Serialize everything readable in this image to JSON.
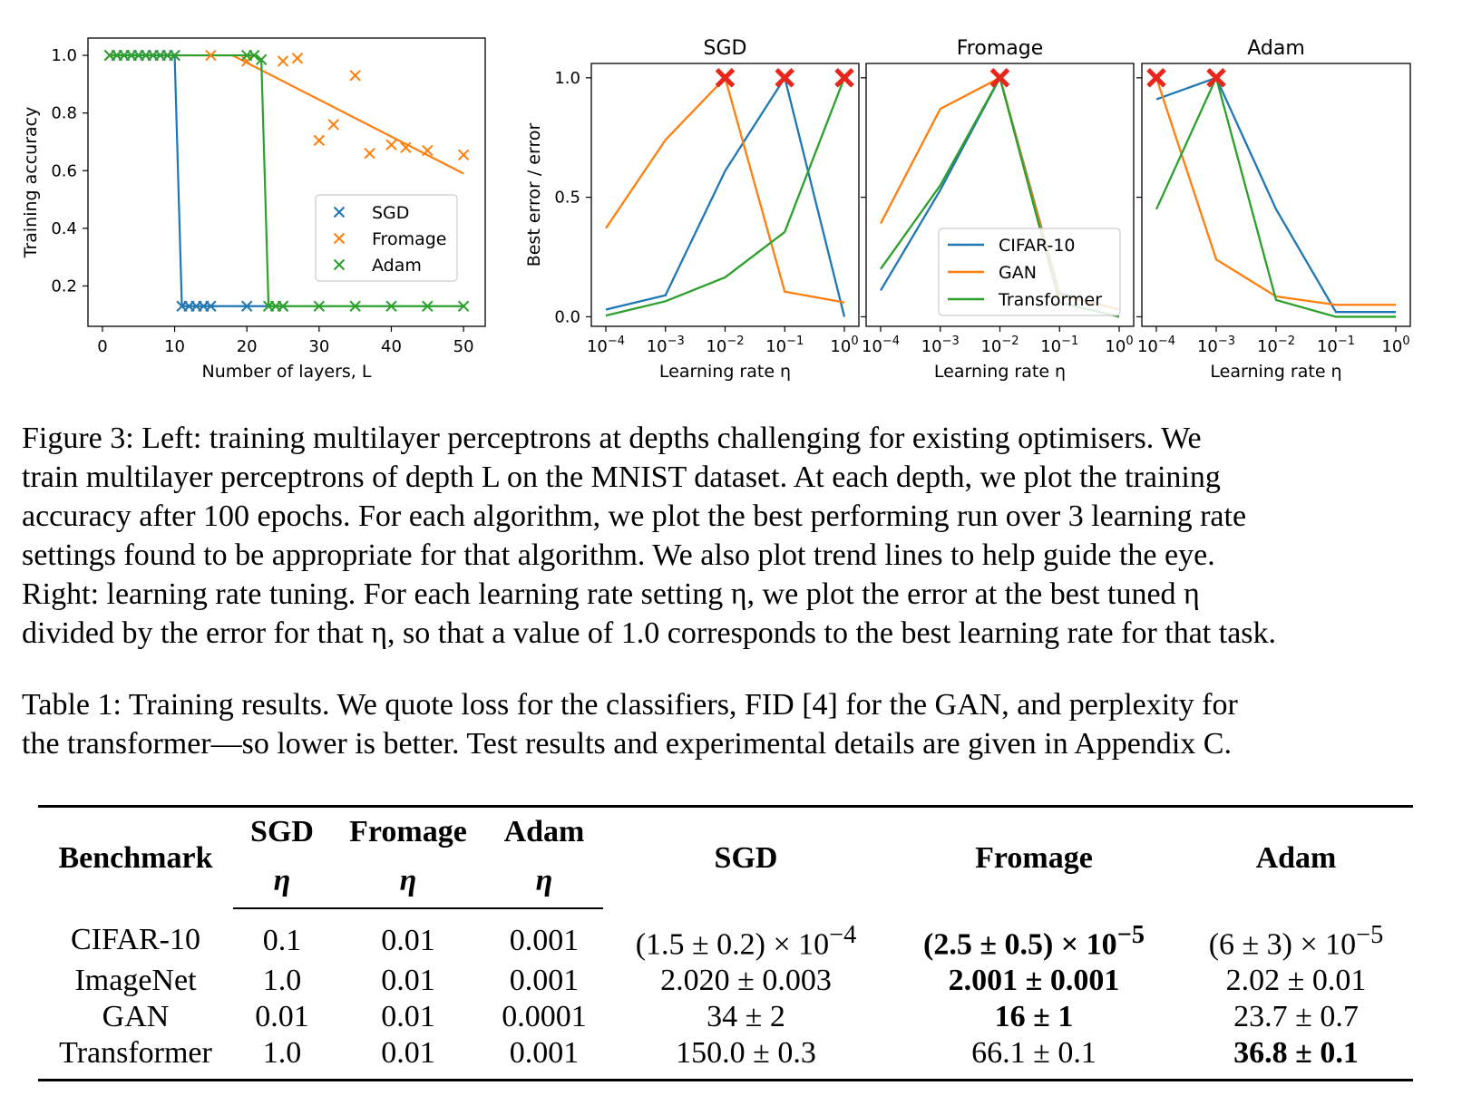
{
  "chart_data": [
    {
      "type": "scatter",
      "xlabel": "Number of layers, L",
      "ylabel": "Training accuracy",
      "xlim": [
        -2,
        53
      ],
      "ylim": [
        0.06,
        1.06
      ],
      "xticks": [
        "0",
        "10",
        "20",
        "30",
        "40",
        "50"
      ],
      "yticks": [
        "0.2",
        "0.4",
        "0.6",
        "0.8",
        "1.0"
      ],
      "legend": [
        "SGD",
        "Fromage",
        "Adam"
      ],
      "legend_position": "center-right",
      "series": [
        {
          "name": "SGD",
          "color": "#1f77b4",
          "points": [
            [
              1,
              1.0
            ],
            [
              2,
              1.0
            ],
            [
              3,
              1.0
            ],
            [
              4,
              1.0
            ],
            [
              5,
              1.0
            ],
            [
              6,
              1.0
            ],
            [
              7,
              1.0
            ],
            [
              8,
              1.0
            ],
            [
              9,
              1.0
            ],
            [
              10,
              1.0
            ],
            [
              11,
              0.13
            ],
            [
              12,
              0.13
            ],
            [
              13,
              0.13
            ],
            [
              14,
              0.13
            ],
            [
              15,
              0.13
            ],
            [
              20,
              0.13
            ],
            [
              25,
              0.13
            ]
          ],
          "trend": [
            [
              1,
              1.0
            ],
            [
              10,
              1.0
            ],
            [
              11,
              0.13
            ],
            [
              25,
              0.13
            ]
          ]
        },
        {
          "name": "Fromage",
          "color": "#ff7f0e",
          "points": [
            [
              1,
              1.0
            ],
            [
              15,
              1.0
            ],
            [
              20,
              0.98
            ],
            [
              25,
              0.98
            ],
            [
              27,
              0.99
            ],
            [
              30,
              0.705
            ],
            [
              32,
              0.76
            ],
            [
              35,
              0.93
            ],
            [
              37,
              0.66
            ],
            [
              40,
              0.69
            ],
            [
              42,
              0.68
            ],
            [
              45,
              0.67
            ],
            [
              50,
              0.655
            ]
          ],
          "trend": [
            [
              1,
              1.0
            ],
            [
              18,
              1.0
            ],
            [
              50,
              0.59
            ]
          ]
        },
        {
          "name": "Adam",
          "color": "#2ca02c",
          "points": [
            [
              1,
              1.0
            ],
            [
              2,
              1.0
            ],
            [
              3,
              1.0
            ],
            [
              4,
              1.0
            ],
            [
              5,
              1.0
            ],
            [
              6,
              1.0
            ],
            [
              7,
              1.0
            ],
            [
              8,
              1.0
            ],
            [
              9,
              1.0
            ],
            [
              10,
              1.0
            ],
            [
              20,
              1.0
            ],
            [
              21,
              1.0
            ],
            [
              22,
              0.985
            ],
            [
              23,
              0.13
            ],
            [
              24,
              0.13
            ],
            [
              25,
              0.13
            ],
            [
              30,
              0.13
            ],
            [
              35,
              0.13
            ],
            [
              40,
              0.13
            ],
            [
              45,
              0.13
            ],
            [
              50,
              0.13
            ]
          ],
          "trend": [
            [
              1,
              1.0
            ],
            [
              21,
              1.0
            ],
            [
              22,
              0.985
            ],
            [
              23,
              0.13
            ],
            [
              50,
              0.13
            ]
          ]
        }
      ]
    },
    {
      "type": "line",
      "panels": [
        {
          "title": "SGD",
          "series": [
            {
              "name": "CIFAR-10",
              "values": [
                0.03,
                0.09,
                0.61,
                1.0,
                0.0
              ]
            },
            {
              "name": "GAN",
              "values": [
                0.37,
                0.74,
                1.0,
                0.105,
                0.06
              ]
            },
            {
              "name": "Transformer",
              "values": [
                0.005,
                0.065,
                0.165,
                0.355,
                1.0
              ]
            }
          ],
          "best": [
            2,
            3,
            4
          ]
        },
        {
          "title": "Fromage",
          "series": [
            {
              "name": "CIFAR-10",
              "values": [
                0.11,
                0.53,
                1.0,
                0.1,
                0.03
              ]
            },
            {
              "name": "GAN",
              "values": [
                0.39,
                0.87,
                1.0,
                0.09,
                0.03
              ]
            },
            {
              "name": "Transformer",
              "values": [
                0.2,
                0.55,
                1.0,
                0.06,
                0.0
              ]
            }
          ],
          "best": [
            2
          ]
        },
        {
          "title": "Adam",
          "series": [
            {
              "name": "CIFAR-10",
              "values": [
                0.91,
                1.0,
                0.45,
                0.02,
                0.02
              ]
            },
            {
              "name": "GAN",
              "values": [
                1.0,
                0.24,
                0.085,
                0.05,
                0.05
              ]
            },
            {
              "name": "Transformer",
              "values": [
                0.45,
                1.0,
                0.07,
                0.0,
                0.0
              ]
            }
          ],
          "best": [
            0,
            1
          ]
        }
      ],
      "x_categories": [
        "10^-4",
        "10^-3",
        "10^-2",
        "10^-1",
        "10^0"
      ],
      "xtick_exponents": [
        "−4",
        "−3",
        "−2",
        "−1",
        "0"
      ],
      "xlabel": "Learning rate η",
      "ylabel": "Best error / error",
      "ylim": [
        -0.04,
        1.06
      ],
      "yticks": [
        "0.0",
        "0.5",
        "1.0"
      ],
      "legend": [
        "CIFAR-10",
        "GAN",
        "Transformer"
      ],
      "legend_panel": "Fromage",
      "legend_position": "lower-right",
      "colors": {
        "CIFAR-10": "#1f77b4",
        "GAN": "#ff7f0e",
        "Transformer": "#2ca02c",
        "best_marker": "#e8261b"
      }
    }
  ],
  "figure_caption": [
    "Figure 3: Left: training multilayer perceptrons at depths challenging for existing optimisers. We",
    "train multilayer perceptrons of depth L on the MNIST dataset. At each depth, we plot the training",
    "accuracy after 100 epochs. For each algorithm, we plot the best performing run over 3 learning rate",
    "settings found to be appropriate for that algorithm. We also plot trend lines to help guide the eye.",
    "Right: learning rate tuning. For each learning rate setting η, we plot the error at the best tuned η",
    "divided by the error for that η, so that a value of 1.0 corresponds to the best learning rate for that task."
  ],
  "table_caption": [
    "Table 1: Training results. We quote loss for the classifiers, FID [4] for the GAN, and perplexity for",
    "the transformer—so lower is better. Test results and experimental details are given in Appendix C."
  ],
  "table": {
    "headers": {
      "benchmark": "Benchmark",
      "sgd_eta": "SGD",
      "fromage_eta": "Fromage",
      "adam_eta": "Adam",
      "eta": "η",
      "sgd": "SGD",
      "fromage": "Fromage",
      "adam": "Adam"
    },
    "rows": [
      {
        "benchmark": "CIFAR-10",
        "sgd_eta": "0.1",
        "fromage_eta": "0.01",
        "adam_eta": "0.001",
        "sgd": "(1.5 ± 0.2) × 10",
        "sgd_exp": "−4",
        "fromage": "(2.5 ± 0.5) × 10",
        "fromage_exp": "−5",
        "adam": "(6 ± 3) × 10",
        "adam_exp": "−5"
      },
      {
        "benchmark": "ImageNet",
        "sgd_eta": "1.0",
        "fromage_eta": "0.01",
        "adam_eta": "0.001",
        "sgd": "2.020 ± 0.003",
        "fromage": "2.001 ± 0.001",
        "adam": "2.02 ± 0.01"
      },
      {
        "benchmark": "GAN",
        "sgd_eta": "0.01",
        "fromage_eta": "0.01",
        "adam_eta": "0.0001",
        "sgd": "34 ± 2",
        "fromage": "16 ± 1",
        "adam": "23.7 ± 0.7"
      },
      {
        "benchmark": "Transformer",
        "sgd_eta": "1.0",
        "fromage_eta": "0.01",
        "adam_eta": "0.001",
        "sgd": "150.0 ± 0.3",
        "fromage": "66.1 ± 0.1",
        "adam": "36.8 ± 0.1"
      }
    ]
  }
}
